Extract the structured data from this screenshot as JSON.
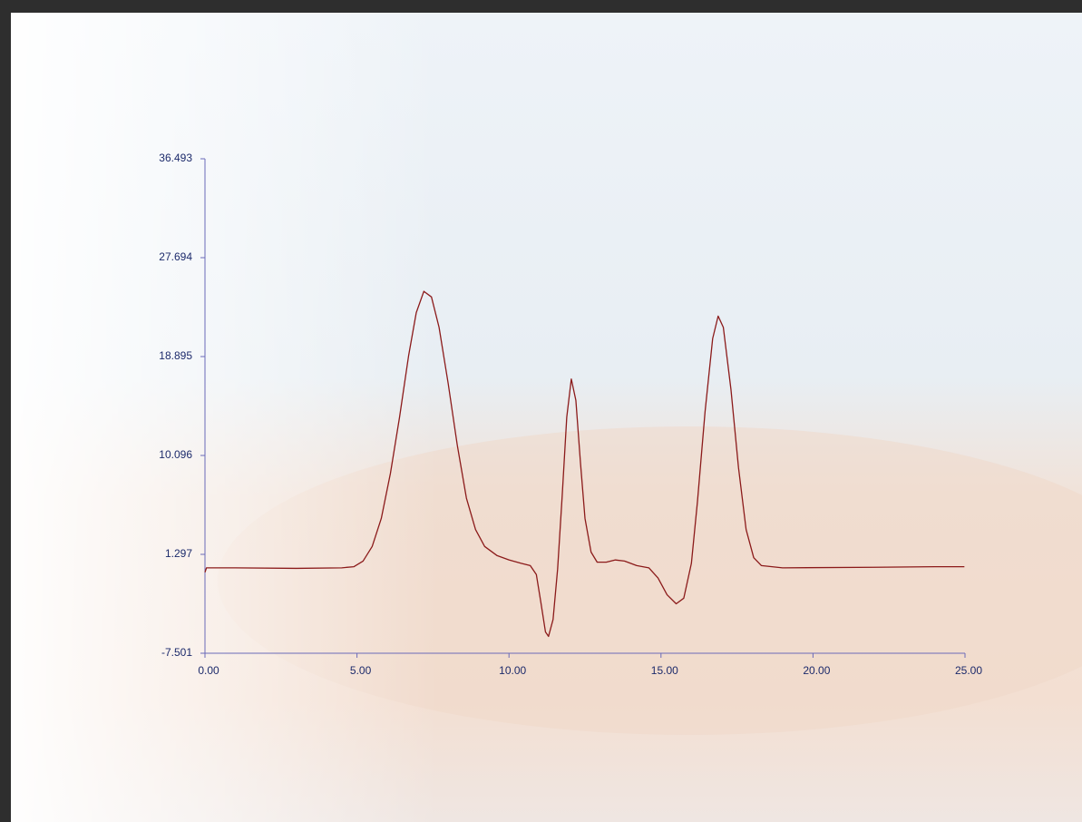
{
  "chart_data": {
    "type": "line",
    "x": [
      0,
      0.05,
      1,
      3,
      4.5,
      4.9,
      5.2,
      5.5,
      5.8,
      6.1,
      6.4,
      6.7,
      6.95,
      7.2,
      7.45,
      7.7,
      8.0,
      8.3,
      8.6,
      8.9,
      9.2,
      9.6,
      10.0,
      10.4,
      10.7,
      10.9,
      11.05,
      11.2,
      11.3,
      11.45,
      11.6,
      11.75,
      11.9,
      12.05,
      12.2,
      12.35,
      12.5,
      12.7,
      12.9,
      13.2,
      13.5,
      13.8,
      14.2,
      14.6,
      14.9,
      15.2,
      15.5,
      15.75,
      16.0,
      16.2,
      16.45,
      16.7,
      16.88,
      17.05,
      17.3,
      17.55,
      17.8,
      18.05,
      18.3,
      19,
      22,
      24,
      24.98
    ],
    "series": [
      {
        "color": "#8b1a1a",
        "values": [
          -0.3,
          0.1,
          0.1,
          0.05,
          0.1,
          0.2,
          0.7,
          2.0,
          4.5,
          8.5,
          13.5,
          19.0,
          22.8,
          24.7,
          24.2,
          21.5,
          16.5,
          11.0,
          6.3,
          3.5,
          2.0,
          1.2,
          0.8,
          0.5,
          0.3,
          -0.5,
          -3.0,
          -5.6,
          -6.0,
          -4.5,
          0.0,
          6.5,
          13.5,
          16.9,
          15.0,
          9.5,
          4.5,
          1.5,
          0.6,
          0.6,
          0.8,
          0.7,
          0.3,
          0.1,
          -0.8,
          -2.3,
          -3.1,
          -2.6,
          0.5,
          6.0,
          14.0,
          20.5,
          22.5,
          21.5,
          16.0,
          9.0,
          3.5,
          1.0,
          0.3,
          0.1,
          0.15,
          0.2,
          0.2
        ]
      }
    ],
    "xlim": [
      0,
      25
    ],
    "xticks": [
      {
        "value": 0,
        "label": "0.00"
      },
      {
        "value": 5,
        "label": "5.00"
      },
      {
        "value": 10,
        "label": "10.00"
      },
      {
        "value": 15,
        "label": "15.00"
      },
      {
        "value": 20,
        "label": "20.00"
      },
      {
        "value": 25,
        "label": "25.00"
      }
    ],
    "ylim": [
      -7.501,
      36.493
    ],
    "yticks": [
      -7.501,
      1.297,
      10.096,
      18.895,
      27.694,
      36.493
    ],
    "axis_color": "#6a6ab8"
  }
}
